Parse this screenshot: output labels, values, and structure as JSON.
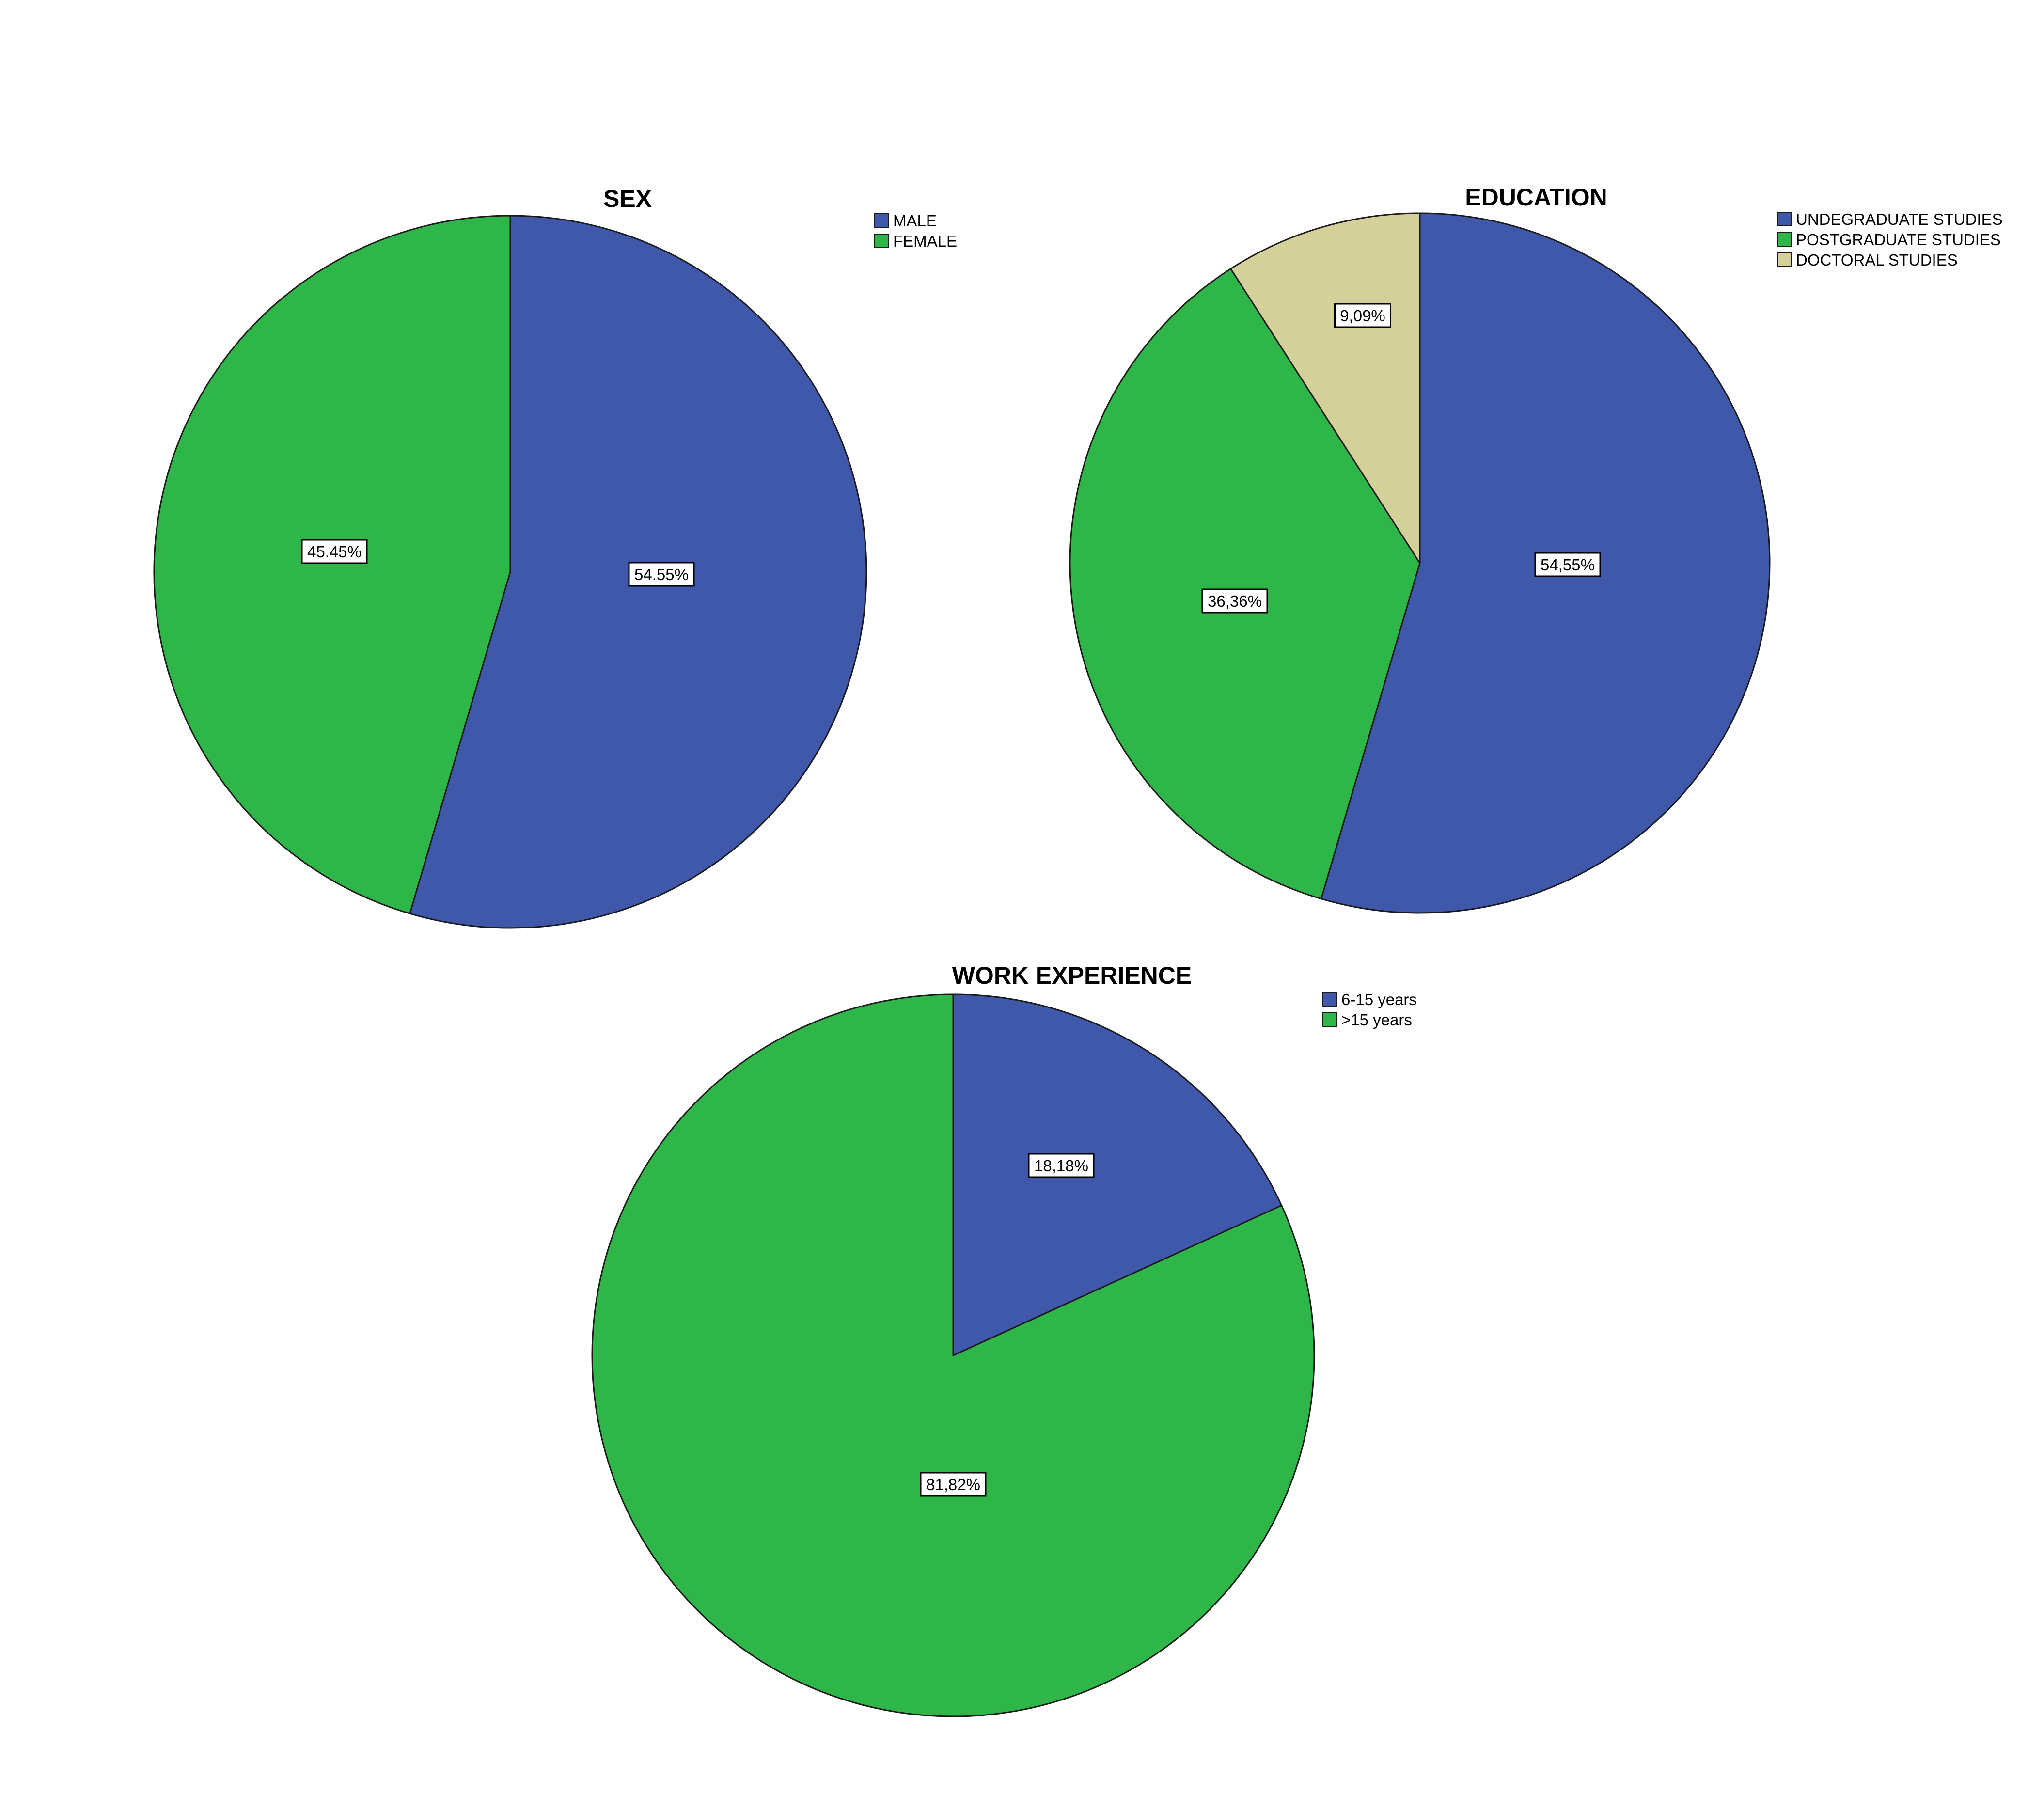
{
  "chart_data": [
    {
      "type": "pie",
      "title": "SEX",
      "categories": [
        "MALE",
        "FEMALE"
      ],
      "values": [
        54.55,
        45.45
      ],
      "data_labels": [
        "54.55%",
        "45.45%"
      ],
      "colors": [
        "#3f58aa",
        "#2fb648"
      ],
      "legend_position": "top-right",
      "start_angle_deg": 0,
      "direction": "clockwise"
    },
    {
      "type": "pie",
      "title": "EDUCATION",
      "categories": [
        "UNDEGRADUATE STUDIES",
        "POSTGRADUATE STUDIES",
        "DOCTORAL STUDIES"
      ],
      "values": [
        54.55,
        36.36,
        9.09
      ],
      "data_labels": [
        "54,55%",
        "36,36%",
        "9,09%"
      ],
      "colors": [
        "#3f58aa",
        "#2fb648",
        "#d4d09a"
      ],
      "legend_position": "top-right",
      "start_angle_deg": 0,
      "direction": "clockwise"
    },
    {
      "type": "pie",
      "title": "WORK EXPERIENCE",
      "categories": [
        "6-15 years",
        ">15 years"
      ],
      "values": [
        18.18,
        81.82
      ],
      "data_labels": [
        "18,18%",
        "81,82%"
      ],
      "colors": [
        "#3f58aa",
        "#2fb648"
      ],
      "legend_position": "top-right",
      "start_angle_deg": 0,
      "direction": "clockwise"
    }
  ]
}
